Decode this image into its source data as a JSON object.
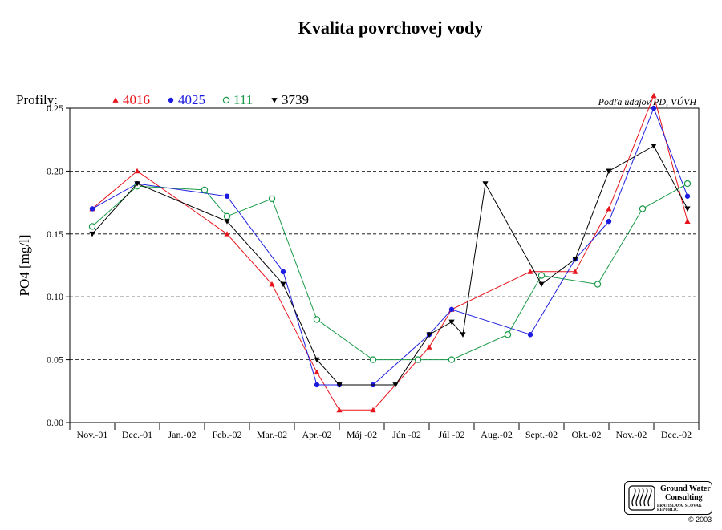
{
  "chart_data": {
    "type": "line",
    "title": "Kvalita povrchovej vody",
    "ylabel": "PO4 [mg/l]",
    "xlabel": "",
    "source_note": "Podľa údajov PD, VÚVH",
    "legend_label": "Profily:",
    "legend_position": "top-left",
    "ylim": [
      0,
      0.25
    ],
    "yticks": [
      "0.00",
      "0.05",
      "0.10",
      "0.15",
      "0.20",
      "0.25"
    ],
    "grid": "horizontal dashed",
    "categories": [
      "Nov.-01",
      "Dec.-01",
      "Jan.-02",
      "Feb.-02",
      "Mar.-02",
      "Apr.-02",
      "Máj -02",
      "Jún -02",
      "Júl -02",
      "Aug.-02",
      "Sept.-02",
      "Okt.-02",
      "Nov.-02",
      "Dec.-02"
    ],
    "series": [
      {
        "name": "4016",
        "color": "#e8141c",
        "marker": "triangle-up",
        "points": [
          [
            0,
            0.17
          ],
          [
            1,
            0.2
          ],
          [
            3,
            0.15
          ],
          [
            4,
            0.11
          ],
          [
            5,
            0.04
          ],
          [
            5.5,
            0.01
          ],
          [
            6.25,
            0.01
          ],
          [
            7.5,
            0.06
          ],
          [
            8,
            0.09
          ],
          [
            9.75,
            0.12
          ],
          [
            10.75,
            0.12
          ],
          [
            11.5,
            0.17
          ],
          [
            12.5,
            0.26
          ],
          [
            13.25,
            0.16
          ]
        ]
      },
      {
        "name": "4025",
        "color": "#1c1ce0",
        "marker": "circle-filled",
        "points": [
          [
            0,
            0.17
          ],
          [
            1,
            0.19
          ],
          [
            3,
            0.18
          ],
          [
            4.25,
            0.12
          ],
          [
            5,
            0.03
          ],
          [
            5.5,
            0.03
          ],
          [
            6.25,
            0.03
          ],
          [
            7.5,
            0.07
          ],
          [
            8,
            0.09
          ],
          [
            9.75,
            0.07
          ],
          [
            10.75,
            0.13
          ],
          [
            11.5,
            0.16
          ],
          [
            12.5,
            0.25
          ],
          [
            13.25,
            0.18
          ]
        ]
      },
      {
        "name": "111",
        "color": "#1a9a48",
        "marker": "circle-open",
        "points": [
          [
            0,
            0.156
          ],
          [
            1,
            0.188
          ],
          [
            2.5,
            0.185
          ],
          [
            3,
            0.164
          ],
          [
            4,
            0.178
          ],
          [
            5,
            0.082
          ],
          [
            6.25,
            0.05
          ],
          [
            7.25,
            0.05
          ],
          [
            8,
            0.05
          ],
          [
            9.25,
            0.07
          ],
          [
            10,
            0.117
          ],
          [
            11.25,
            0.11
          ],
          [
            12.25,
            0.17
          ],
          [
            13.25,
            0.19
          ]
        ]
      },
      {
        "name": "3739",
        "color": "#000000",
        "marker": "triangle-down",
        "points": [
          [
            0,
            0.15
          ],
          [
            1,
            0.19
          ],
          [
            3,
            0.16
          ],
          [
            4.25,
            0.11
          ],
          [
            5,
            0.05
          ],
          [
            5.5,
            0.03
          ],
          [
            6.75,
            0.03
          ],
          [
            7.5,
            0.07
          ],
          [
            8,
            0.08
          ],
          [
            8.25,
            0.07
          ],
          [
            8.75,
            0.19
          ],
          [
            10,
            0.11
          ],
          [
            10.75,
            0.13
          ],
          [
            11.5,
            0.2
          ],
          [
            12.5,
            0.22
          ],
          [
            13.25,
            0.17
          ]
        ]
      }
    ]
  },
  "logo": {
    "line1": "Ground Water",
    "line2": "Consulting",
    "line3": "BRATISLAVA, SLOVAK REPUBLIC"
  },
  "copyright": "© 2003"
}
